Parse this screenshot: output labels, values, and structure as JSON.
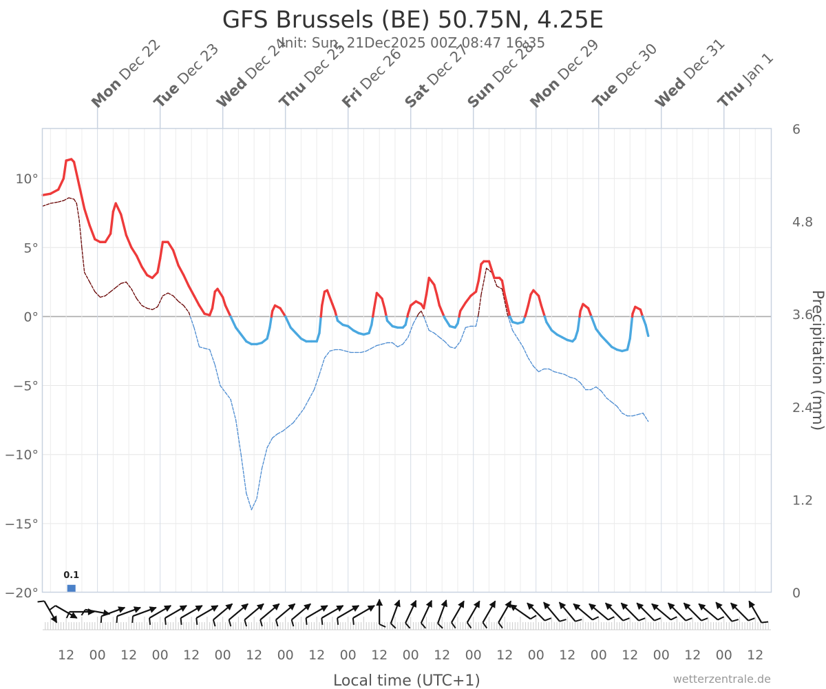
{
  "chart_data": {
    "type": "line",
    "title": "GFS Brussels (BE) 50.75N, 4.25E",
    "subtitle": "Init: Sun, 21Dec2025 00Z 08:47 16:35",
    "xlabel": "Local time (UTC+1)",
    "ylabel_right": "Precipitation (mm)",
    "credit": "wetterzentrale.de",
    "y_temp": {
      "min": -20,
      "max": 13.6,
      "ticks": [
        10,
        5,
        0,
        -5,
        -10,
        -15,
        -20
      ],
      "tick_labels": [
        "10°",
        "5°",
        "0°",
        "−5°",
        "−10°",
        "−15°",
        "−20°"
      ]
    },
    "y_precip": {
      "min": 0,
      "max": 6,
      "ticks": [
        6,
        4.8,
        3.6,
        2.4,
        1.2,
        0
      ],
      "tick_labels": [
        "6",
        "4.8",
        "3.6",
        "2.4",
        "1.2",
        "0"
      ]
    },
    "x_hours": {
      "min": 3,
      "max": 282
    },
    "bottom_ticks": [
      {
        "h": 12,
        "label": "12"
      },
      {
        "h": 24,
        "label": "00"
      },
      {
        "h": 36,
        "label": "12"
      },
      {
        "h": 48,
        "label": "00"
      },
      {
        "h": 60,
        "label": "12"
      },
      {
        "h": 72,
        "label": "00"
      },
      {
        "h": 84,
        "label": "12"
      },
      {
        "h": 96,
        "label": "00"
      },
      {
        "h": 108,
        "label": "12"
      },
      {
        "h": 120,
        "label": "00"
      },
      {
        "h": 132,
        "label": "12"
      },
      {
        "h": 144,
        "label": "00"
      },
      {
        "h": 156,
        "label": "12"
      },
      {
        "h": 168,
        "label": "00"
      },
      {
        "h": 180,
        "label": "12"
      },
      {
        "h": 192,
        "label": "00"
      },
      {
        "h": 204,
        "label": "12"
      },
      {
        "h": 216,
        "label": "00"
      },
      {
        "h": 228,
        "label": "12"
      },
      {
        "h": 240,
        "label": "00"
      },
      {
        "h": 252,
        "label": "12"
      },
      {
        "h": 264,
        "label": "00"
      },
      {
        "h": 276,
        "label": "12"
      }
    ],
    "days": [
      {
        "h": 24,
        "dow": "Mon",
        "date": "Dec 22"
      },
      {
        "h": 48,
        "dow": "Tue",
        "date": "Dec 23"
      },
      {
        "h": 72,
        "dow": "Wed",
        "date": "Dec 24"
      },
      {
        "h": 96,
        "dow": "Thu",
        "date": "Dec 25"
      },
      {
        "h": 120,
        "dow": "Fri",
        "date": "Dec 26"
      },
      {
        "h": 144,
        "dow": "Sat",
        "date": "Dec 27"
      },
      {
        "h": 168,
        "dow": "Sun",
        "date": "Dec 28"
      },
      {
        "h": 192,
        "dow": "Mon",
        "date": "Dec 29"
      },
      {
        "h": 216,
        "dow": "Tue",
        "date": "Dec 30"
      },
      {
        "h": 240,
        "dow": "Wed",
        "date": "Dec 31"
      },
      {
        "h": 264,
        "dow": "Thu",
        "date": "Jan 1"
      }
    ],
    "series": [
      {
        "name": "",
        "color_warm": "#ee3a3a",
        "color_cold": "#4aa8e0",
        "points": [
          [
            3,
            8.8
          ],
          [
            6,
            8.9
          ],
          [
            9,
            9.2
          ],
          [
            11,
            10
          ],
          [
            12,
            11.3
          ],
          [
            14,
            11.4
          ],
          [
            15,
            11.2
          ],
          [
            17,
            9.5
          ],
          [
            19,
            7.8
          ],
          [
            21,
            6.6
          ],
          [
            23,
            5.6
          ],
          [
            25,
            5.4
          ],
          [
            27,
            5.4
          ],
          [
            29,
            6
          ],
          [
            30,
            7.6
          ],
          [
            31,
            8.2
          ],
          [
            33,
            7.4
          ],
          [
            35,
            5.9
          ],
          [
            37,
            5.0
          ],
          [
            39,
            4.4
          ],
          [
            41,
            3.6
          ],
          [
            43,
            3.0
          ],
          [
            45,
            2.8
          ],
          [
            47,
            3.2
          ],
          [
            48,
            4.2
          ],
          [
            49,
            5.4
          ],
          [
            51,
            5.4
          ],
          [
            53,
            4.8
          ],
          [
            55,
            3.7
          ],
          [
            57,
            3.0
          ],
          [
            59,
            2.2
          ],
          [
            61,
            1.5
          ],
          [
            63,
            0.8
          ],
          [
            65,
            0.2
          ],
          [
            67,
            0.1
          ],
          [
            68,
            0.6
          ],
          [
            69,
            1.8
          ],
          [
            70,
            2.0
          ],
          [
            72,
            1.4
          ],
          [
            73,
            0.8
          ],
          [
            75,
            0.0
          ],
          [
            77,
            -0.8
          ],
          [
            79,
            -1.3
          ],
          [
            81,
            -1.8
          ],
          [
            83,
            -2.0
          ],
          [
            85,
            -2.0
          ],
          [
            87,
            -1.9
          ],
          [
            89,
            -1.6
          ],
          [
            90,
            -0.8
          ],
          [
            91,
            0.4
          ],
          [
            92,
            0.8
          ],
          [
            94,
            0.6
          ],
          [
            96,
            0.0
          ],
          [
            98,
            -0.8
          ],
          [
            100,
            -1.2
          ],
          [
            102,
            -1.6
          ],
          [
            104,
            -1.8
          ],
          [
            106,
            -1.8
          ],
          [
            108,
            -1.8
          ],
          [
            109,
            -1.2
          ],
          [
            110,
            0.8
          ],
          [
            111,
            1.8
          ],
          [
            112,
            1.9
          ],
          [
            114,
            0.9
          ],
          [
            115,
            0.4
          ],
          [
            116,
            -0.3
          ],
          [
            118,
            -0.6
          ],
          [
            120,
            -0.7
          ],
          [
            122,
            -1.0
          ],
          [
            124,
            -1.2
          ],
          [
            126,
            -1.3
          ],
          [
            128,
            -1.2
          ],
          [
            129,
            -0.6
          ],
          [
            130,
            0.6
          ],
          [
            131,
            1.7
          ],
          [
            133,
            1.3
          ],
          [
            134,
            0.6
          ],
          [
            135,
            -0.3
          ],
          [
            137,
            -0.7
          ],
          [
            139,
            -0.8
          ],
          [
            141,
            -0.8
          ],
          [
            142,
            -0.6
          ],
          [
            143,
            0.2
          ],
          [
            144,
            0.8
          ],
          [
            146,
            1.1
          ],
          [
            148,
            0.9
          ],
          [
            149,
            0.6
          ],
          [
            150,
            1.6
          ],
          [
            151,
            2.8
          ],
          [
            153,
            2.3
          ],
          [
            154,
            1.6
          ],
          [
            155,
            0.8
          ],
          [
            157,
            -0.1
          ],
          [
            159,
            -0.7
          ],
          [
            161,
            -0.8
          ],
          [
            162,
            -0.5
          ],
          [
            163,
            0.4
          ],
          [
            165,
            1.0
          ],
          [
            167,
            1.5
          ],
          [
            169,
            1.8
          ],
          [
            170,
            2.6
          ],
          [
            171,
            3.8
          ],
          [
            172,
            4.0
          ],
          [
            174,
            4.0
          ],
          [
            175,
            3.4
          ],
          [
            176,
            2.8
          ],
          [
            178,
            2.8
          ],
          [
            179,
            2.6
          ],
          [
            180,
            1.6
          ],
          [
            181,
            0.8
          ],
          [
            182,
            0.0
          ],
          [
            183,
            -0.4
          ],
          [
            185,
            -0.5
          ],
          [
            187,
            -0.4
          ],
          [
            188,
            0.1
          ],
          [
            189,
            0.8
          ],
          [
            190,
            1.6
          ],
          [
            191,
            1.9
          ],
          [
            193,
            1.5
          ],
          [
            194,
            0.8
          ],
          [
            196,
            -0.4
          ],
          [
            198,
            -1.0
          ],
          [
            200,
            -1.3
          ],
          [
            202,
            -1.5
          ],
          [
            204,
            -1.7
          ],
          [
            206,
            -1.8
          ],
          [
            207,
            -1.6
          ],
          [
            208,
            -1.0
          ],
          [
            209,
            0.4
          ],
          [
            210,
            0.9
          ],
          [
            212,
            0.6
          ],
          [
            213,
            0.1
          ],
          [
            215,
            -0.9
          ],
          [
            217,
            -1.4
          ],
          [
            219,
            -1.8
          ],
          [
            221,
            -2.2
          ],
          [
            223,
            -2.4
          ],
          [
            225,
            -2.5
          ],
          [
            227,
            -2.4
          ],
          [
            228,
            -1.6
          ],
          [
            229,
            0.2
          ],
          [
            230,
            0.7
          ],
          [
            232,
            0.5
          ],
          [
            233,
            -0.1
          ],
          [
            234,
            -0.6
          ],
          [
            235,
            -1.4
          ]
        ]
      },
      {
        "name": "",
        "color_warm": "#660000",
        "color_cold": "#4a8ad0",
        "points": [
          [
            3,
            8.0
          ],
          [
            6,
            8.2
          ],
          [
            9,
            8.3
          ],
          [
            11,
            8.4
          ],
          [
            13,
            8.6
          ],
          [
            15,
            8.5
          ],
          [
            16,
            8.2
          ],
          [
            17,
            7.0
          ],
          [
            18,
            5.0
          ],
          [
            19,
            3.2
          ],
          [
            21,
            2.5
          ],
          [
            23,
            1.8
          ],
          [
            25,
            1.4
          ],
          [
            27,
            1.5
          ],
          [
            29,
            1.8
          ],
          [
            31,
            2.1
          ],
          [
            33,
            2.4
          ],
          [
            35,
            2.5
          ],
          [
            37,
            2.0
          ],
          [
            39,
            1.3
          ],
          [
            41,
            0.8
          ],
          [
            43,
            0.6
          ],
          [
            45,
            0.5
          ],
          [
            47,
            0.7
          ],
          [
            49,
            1.5
          ],
          [
            51,
            1.7
          ],
          [
            53,
            1.5
          ],
          [
            55,
            1.1
          ],
          [
            57,
            0.8
          ],
          [
            59,
            0.3
          ],
          [
            61,
            -0.8
          ],
          [
            63,
            -2.2
          ],
          [
            65,
            -2.3
          ],
          [
            67,
            -2.4
          ],
          [
            69,
            -3.5
          ],
          [
            71,
            -5.0
          ],
          [
            73,
            -5.5
          ],
          [
            75,
            -6.0
          ],
          [
            77,
            -7.5
          ],
          [
            79,
            -10.0
          ],
          [
            81,
            -12.8
          ],
          [
            83,
            -14.0
          ],
          [
            85,
            -13.2
          ],
          [
            87,
            -11.0
          ],
          [
            89,
            -9.5
          ],
          [
            91,
            -8.8
          ],
          [
            93,
            -8.5
          ],
          [
            95,
            -8.3
          ],
          [
            97,
            -8.0
          ],
          [
            99,
            -7.7
          ],
          [
            101,
            -7.2
          ],
          [
            103,
            -6.7
          ],
          [
            105,
            -6.0
          ],
          [
            107,
            -5.3
          ],
          [
            109,
            -4.2
          ],
          [
            111,
            -3.0
          ],
          [
            113,
            -2.5
          ],
          [
            115,
            -2.4
          ],
          [
            117,
            -2.4
          ],
          [
            119,
            -2.5
          ],
          [
            121,
            -2.6
          ],
          [
            123,
            -2.6
          ],
          [
            125,
            -2.6
          ],
          [
            127,
            -2.5
          ],
          [
            129,
            -2.3
          ],
          [
            131,
            -2.1
          ],
          [
            133,
            -2.0
          ],
          [
            135,
            -1.9
          ],
          [
            137,
            -1.9
          ],
          [
            139,
            -2.2
          ],
          [
            141,
            -2.0
          ],
          [
            143,
            -1.5
          ],
          [
            145,
            -0.5
          ],
          [
            147,
            0.2
          ],
          [
            148,
            0.4
          ],
          [
            149,
            0.0
          ],
          [
            151,
            -1.0
          ],
          [
            153,
            -1.2
          ],
          [
            155,
            -1.5
          ],
          [
            157,
            -1.8
          ],
          [
            159,
            -2.2
          ],
          [
            161,
            -2.3
          ],
          [
            163,
            -1.8
          ],
          [
            165,
            -0.8
          ],
          [
            167,
            -0.7
          ],
          [
            169,
            -0.7
          ],
          [
            170,
            0.2
          ],
          [
            171,
            1.6
          ],
          [
            173,
            3.5
          ],
          [
            175,
            3.2
          ],
          [
            177,
            2.2
          ],
          [
            179,
            2.0
          ],
          [
            181,
            0.2
          ],
          [
            183,
            -1.0
          ],
          [
            185,
            -1.6
          ],
          [
            187,
            -2.2
          ],
          [
            189,
            -3.0
          ],
          [
            191,
            -3.6
          ],
          [
            193,
            -4.0
          ],
          [
            195,
            -3.8
          ],
          [
            197,
            -3.8
          ],
          [
            199,
            -4.0
          ],
          [
            201,
            -4.1
          ],
          [
            203,
            -4.2
          ],
          [
            205,
            -4.4
          ],
          [
            207,
            -4.5
          ],
          [
            209,
            -4.8
          ],
          [
            211,
            -5.3
          ],
          [
            213,
            -5.3
          ],
          [
            215,
            -5.1
          ],
          [
            217,
            -5.4
          ],
          [
            219,
            -5.9
          ],
          [
            221,
            -6.2
          ],
          [
            223,
            -6.5
          ],
          [
            225,
            -7.0
          ],
          [
            227,
            -7.2
          ],
          [
            229,
            -7.2
          ],
          [
            231,
            -7.1
          ],
          [
            233,
            -7.0
          ],
          [
            235,
            -7.6
          ]
        ]
      }
    ],
    "precip_bars": [
      {
        "h": 14,
        "value": 0.1,
        "label": "0.1"
      }
    ],
    "wind_dirs": [
      330,
      300,
      270,
      280,
      250,
      250,
      250,
      240,
      240,
      240,
      240,
      230,
      230,
      230,
      230,
      230,
      230,
      240,
      240,
      240,
      240,
      180,
      200,
      205,
      205,
      200,
      210,
      210,
      210,
      210,
      125,
      135,
      140,
      140,
      130,
      130,
      135,
      135,
      135,
      130,
      135,
      135,
      130,
      140,
      135,
      150
    ],
    "wind_start_hour": 6,
    "wind_step_hours": 6
  }
}
